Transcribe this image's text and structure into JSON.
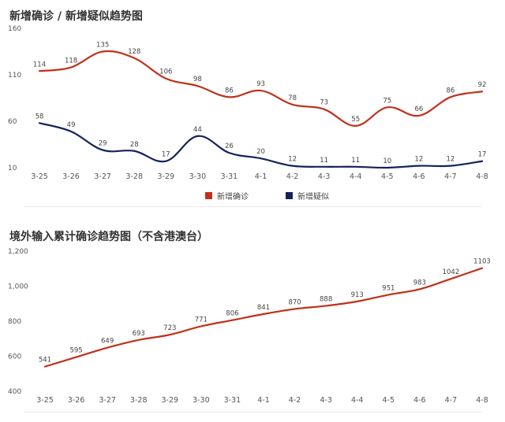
{
  "chart_data": [
    {
      "type": "line",
      "title": "新增确诊 / 新增疑似趋势图",
      "categories": [
        "3-25",
        "3-26",
        "3-27",
        "3-28",
        "3-29",
        "3-30",
        "3-31",
        "4-1",
        "4-2",
        "4-3",
        "4-4",
        "4-5",
        "4-6",
        "4-7",
        "4-8"
      ],
      "ylim": [
        10,
        160
      ],
      "yticks": [
        "10",
        "60",
        "110",
        "160"
      ],
      "legend_position": "bottom",
      "grid": false,
      "series": [
        {
          "name": "新增确诊",
          "color": "#c0311a",
          "values": [
            114,
            118,
            135,
            128,
            106,
            98,
            86,
            93,
            78,
            73,
            55,
            75,
            66,
            86,
            92
          ]
        },
        {
          "name": "新增疑似",
          "color": "#14235a",
          "values": [
            58,
            49,
            29,
            28,
            17,
            44,
            26,
            20,
            12,
            11,
            11,
            10,
            12,
            12,
            17
          ]
        }
      ]
    },
    {
      "type": "line",
      "title": "境外输入累计确诊趋势图（不含港澳台）",
      "categories": [
        "3-25",
        "3-26",
        "3-27",
        "3-28",
        "3-29",
        "3-30",
        "3-31",
        "4-1",
        "4-2",
        "4-3",
        "4-4",
        "4-5",
        "4-6",
        "4-7",
        "4-8"
      ],
      "ylim": [
        400,
        1200
      ],
      "yticks": [
        "400",
        "600",
        "800",
        "1,000",
        "1,200"
      ],
      "grid": false,
      "series": [
        {
          "color": "#c0311a",
          "values": [
            541,
            595,
            649,
            693,
            723,
            771,
            806,
            841,
            870,
            888,
            913,
            951,
            983,
            1042,
            1103
          ]
        }
      ]
    }
  ]
}
